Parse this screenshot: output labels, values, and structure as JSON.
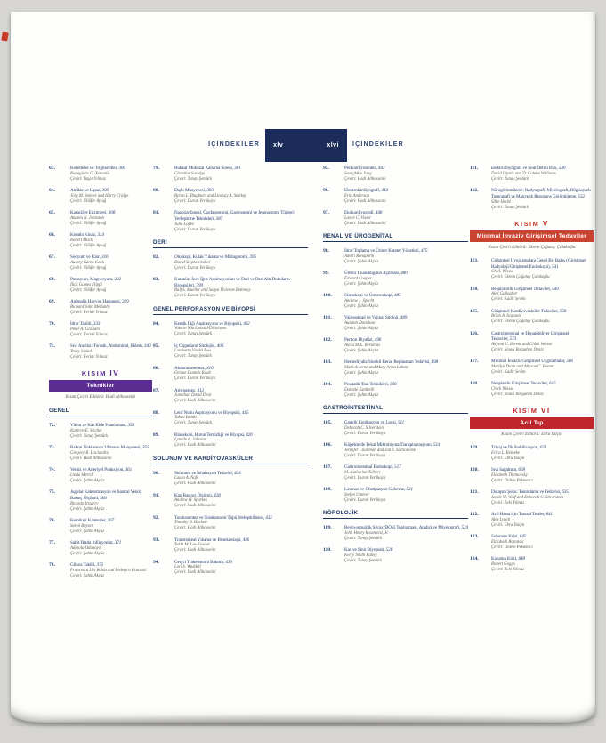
{
  "header": {
    "label_left": "İÇİNDEKİLER",
    "label_right": "İÇİNDEKİLER",
    "page_number_left": "xlv",
    "page_number_right": "xlvi"
  },
  "colors": {
    "navy_title": "#24416f",
    "navy_header_box": "#1c2c5a",
    "purple_part": "#5c2d91",
    "red_part_v": "#c84431",
    "red_part_vi": "#c0272d",
    "meta_gray": "#5f5e5c"
  },
  "columns": [
    [
      {
        "type": "entry",
        "number": "63.",
        "title": "Kolesterol ve Trigliseritler",
        "page": "300",
        "authors": "Panagiotis G. Xenoulis",
        "translator": "Çeviri: Yaşar Yılmaz"
      },
      {
        "type": "entry",
        "number": "64.",
        "title": "Amilaz ve Lipaz",
        "page": "306",
        "authors": "Jörg M. Steiner and Harry Cridge",
        "translator": "Çeviri: Nilüfer Aytuğ"
      },
      {
        "type": "entry",
        "number": "65.",
        "title": "Karaciğer Enzimleri",
        "page": "308",
        "authors": "Andrea N. Johnston",
        "translator": "Çeviri: Nilüfer Aytuğ"
      },
      {
        "type": "entry",
        "number": "66.",
        "title": "Kreatin Kinaz",
        "page": "314",
        "authors": "Robert Mack",
        "translator": "Çeviri: Nilüfer Aytuğ"
      },
      {
        "type": "entry",
        "number": "67.",
        "title": "Sodyum ve Klor",
        "page": "316",
        "authors": "Audrey Karen Cook",
        "translator": "Çeviri: Nilüfer Aytuğ"
      },
      {
        "type": "entry",
        "number": "68.",
        "title": "Potasyum, Magnezyum",
        "page": "322",
        "authors": "İlias Gomes Flippi",
        "translator": "Çeviri: Nilüfer Aytuğ"
      },
      {
        "type": "entry",
        "number": "69.",
        "title": "Animalia Hayvan Hastanesi",
        "page": "329",
        "authors": "Richard John Mellanby",
        "translator": "Çeviri: Feride Yılmaz"
      },
      {
        "type": "entry",
        "number": "70.",
        "title": "İdrar Tahlili",
        "page": "333",
        "authors": "Peter A. Graham",
        "translator": "Çeviri: Feride Yılmaz"
      },
      {
        "type": "entry",
        "number": "71.",
        "title": "Sıvı Analizi: Torasik, Abdominal, Eklem",
        "page": "340",
        "authors": "Tracy Stokol",
        "translator": "Çeviri: Feride Yılmaz"
      },
      {
        "type": "part",
        "kisim_label": "KISIM",
        "numeral": "IV",
        "title": "Teknikler",
        "editor": "Kısım Çeviri Editörü: Hadi Alihosseini",
        "text_color": "#5c2d91",
        "bar_color": "#5c2d91"
      },
      {
        "type": "section",
        "label": "GENEL"
      },
      {
        "type": "entry",
        "number": "72.",
        "title": "Vücut ve Kas Kitle Puanlaması",
        "page": "353",
        "authors": "Kathryn E. Michel",
        "translator": "Çeviri: Tunay Şentürk"
      },
      {
        "type": "entry",
        "number": "73.",
        "title": "Bakım Noktasında Ultrason Muayenesi",
        "page": "355",
        "authors": "Gregory R. Lisciandro",
        "translator": "Çeviri: Hadi Alihosseini"
      },
      {
        "type": "entry",
        "number": "74.",
        "title": "Venöz ve Arteriyel Ponksiyon",
        "page": "361",
        "authors": "Linda Merrill",
        "translator": "Çeviri: Şahin Akyüz"
      },
      {
        "type": "entry",
        "number": "75.",
        "title": "Jugular Kateterizasyon ve Santral Venöz Basınç Ölçümü",
        "page": "364",
        "authors": "Ricardo Irizarry",
        "translator": "Çeviri: Şahin Akyüz"
      },
      {
        "type": "entry",
        "number": "76.",
        "title": "Kemikiçi Kateterler",
        "page": "367",
        "authors": "Søren Boysen",
        "translator": "Çeviri: Şahin Akyüz"
      },
      {
        "type": "entry",
        "number": "77.",
        "title": "Sabit Hızda İnfüzyonlar",
        "page": "371",
        "authors": "Adesola Odunayo",
        "translator": "Çeviri: Şahin Akyüz"
      },
      {
        "type": "entry",
        "number": "78.",
        "title": "Glikoz Takibi",
        "page": "375",
        "authors": "Francesca Del Baldo and Federico Fracassi",
        "translator": "Çeviri: Şahin Akyüz"
      }
    ],
    [
      {
        "type": "entry",
        "number": "79.",
        "title": "Bukkal Mukozal Kanama Süresi",
        "page": "381",
        "authors": "Christine Savidge",
        "translator": "Çeviri: Tunay Şentürk"
      },
      {
        "type": "entry",
        "number": "80.",
        "title": "Dışkı Muayenesi",
        "page": "383",
        "authors": "Byron L. Blagburn and Lindsay A. Starkey",
        "translator": "Çeviri: Duran Yerlikaya"
      },
      {
        "type": "entry",
        "number": "81.",
        "title": "Nazoözofageal, Özofagostomi, Gastrostomi ve Jejunostomi Tüpleri: Yerleştirme Teknikleri",
        "page": "387",
        "authors": "Julie Lopez",
        "translator": "Çeviri: Duran Yerlikaya"
      },
      {
        "type": "section",
        "label": "DERİ"
      },
      {
        "type": "entry",
        "number": "82.",
        "title": "Otoskopi, Kulak Yıkama ve Miringotomi",
        "page": "395",
        "authors": "David Stephen Sobel",
        "translator": "Çeviri: Duran Yerlikaya"
      },
      {
        "type": "entry",
        "number": "83.",
        "title": "Kutanöz, İnce İğne Aspirasyonları ve Deri ve Deri Altı Dokuların Biyopsileri",
        "page": "399",
        "authors": "Ralf S. Mueller and Sonya Vivienne Bettenay",
        "translator": "Çeviri: Duran Yerlikaya"
      },
      {
        "type": "section",
        "label": "GENEL PERFORASYON VE BİYOPSİ"
      },
      {
        "type": "entry",
        "number": "84.",
        "title": "Kemik İliği Aspirasyonu ve Biyopsisi",
        "page": "402",
        "authors": "Valerie MacDonald-Dickinson",
        "translator": "Çeviri: Tunay Şentürk"
      },
      {
        "type": "entry",
        "number": "85.",
        "title": "İç Organların Sitolojisi",
        "page": "406",
        "authors": "Lamberto Viadel Bou",
        "translator": "Çeviri: Tunay Şentürk"
      },
      {
        "type": "entry",
        "number": "86.",
        "title": "Abdominosentez",
        "page": "410",
        "authors": "Oriane Daniels Raab",
        "translator": "Çeviri: Duran Yerlikaya"
      },
      {
        "type": "entry",
        "number": "87.",
        "title": "Artrosentez",
        "page": "412",
        "authors": "Jonathan David Dear",
        "translator": "Çeviri: Hadi Alihosseini"
      },
      {
        "type": "entry",
        "number": "88.",
        "title": "Lenf Nodu Aspirasyonu ve Biyopsisi",
        "page": "415",
        "authors": "Takuo Ishida",
        "translator": "Çeviri: Tunay Şentürk"
      },
      {
        "type": "entry",
        "number": "89.",
        "title": "Rinoskopi, Burun Temizliği ve Biyopsi",
        "page": "420",
        "authors": "Lynelle R. Johnson",
        "translator": "Çeviri: Hadi Alihosseini"
      },
      {
        "type": "section",
        "label": "SOLUNUM VE KARDİYOVASKÜLER"
      },
      {
        "type": "entry",
        "number": "90.",
        "title": "Solunum ve İnhalasyon Tedavisi",
        "page": "424",
        "authors": "Laura A. Nafe",
        "translator": "Çeviri: Hadi Alihosseini"
      },
      {
        "type": "entry",
        "number": "91.",
        "title": "Kan Basıncı Ölçümü",
        "page": "428",
        "authors": "Andrew H. Sparkes",
        "translator": "Çeviri: Hadi Alihosseini"
      },
      {
        "type": "entry",
        "number": "92.",
        "title": "Torakosentez ve Torakostomi Tüpü Yerleştirilmesi",
        "page": "432",
        "authors": "Timothy B. Hackett",
        "translator": "Çeviri: Hadi Alihosseini"
      },
      {
        "type": "entry",
        "number": "93.",
        "title": "Transtrakeal Yıkama ve Bronkoskopi",
        "page": "436",
        "authors": "Tekla M. Lee-Fowler",
        "translator": "Çeviri: Hadi Alihosseini"
      },
      {
        "type": "entry",
        "number": "94.",
        "title": "Geçici Trakeostomi Bakımı",
        "page": "439",
        "authors": "Lori S. Waddell",
        "translator": "Çeviri: Hadi Alihosseini"
      }
    ],
    [
      {
        "type": "entry",
        "number": "95.",
        "title": "Perikardiyosentez",
        "page": "442",
        "authors": "SeungWoo Jung",
        "translator": "Çeviri: Hadi Alihosseini"
      },
      {
        "type": "entry",
        "number": "96.",
        "title": "Elektrokardiyografi",
        "page": "444",
        "authors": "Erin Anderson",
        "translator": "Çeviri: Hadi Alihosseini"
      },
      {
        "type": "entry",
        "number": "97.",
        "title": "Ekokardiyografi",
        "page": "448",
        "authors": "Lance C. Visser",
        "translator": "Çeviri: Hadi Alihosseini"
      },
      {
        "type": "section",
        "label": "RENAL VE ÜROGENİTAL"
      },
      {
        "type": "entry",
        "number": "98.",
        "title": "İdrar Toplama ve Üriner Kateter Yönetimi",
        "page": "475",
        "authors": "Adetri Bonaparte",
        "translator": "Çeviri: Şahin Akyüz"
      },
      {
        "type": "entry",
        "number": "99.",
        "title": "Üretra Tıkanıklığının Açılması",
        "page": "480",
        "authors": "Edward Cooper",
        "translator": "Çeviri: Şahin Akyüz"
      },
      {
        "type": "entry",
        "number": "100.",
        "title": "Sistoskopi ve Üreteroskopi",
        "page": "485",
        "authors": "Andrew J. Specht",
        "translator": "Çeviri: Şahin Akyüz"
      },
      {
        "type": "entry",
        "number": "101.",
        "title": "Vajinoskopi ve Vajinal Sitoloji",
        "page": "489",
        "authors": "Autumn Davidson",
        "translator": "Çeviri: Şahin Akyüz"
      },
      {
        "type": "entry",
        "number": "102.",
        "title": "Periton Diyalizi",
        "page": "496",
        "authors": "Alexa M.E. Bersenas",
        "translator": "Çeviri: Şahin Akyüz"
      },
      {
        "type": "entry",
        "number": "103.",
        "title": "Hemodiyaliz/Sürekli Renal Replasman Tedavisi",
        "page": "498",
        "authors": "Mark Acierno and Mary Anna Labato",
        "translator": "Çeviri: Şahin Akyüz"
      },
      {
        "type": "entry",
        "number": "104.",
        "title": "Prostatik Tanı Teknikleri",
        "page": "506",
        "authors": "Daniele Zambelli",
        "translator": "Çeviri: Şahin Akyüz"
      },
      {
        "type": "section",
        "label": "GASTROİNTESTİNAL"
      },
      {
        "type": "entry",
        "number": "105.",
        "title": "Gastrik Entübasyon ve Lavaj",
        "page": "511",
        "authors": "Deborah C. Silverstein",
        "translator": "Çeviri: Duran Yerlikaya"
      },
      {
        "type": "entry",
        "number": "106.",
        "title": "Köpeklerde Fekal Mikrobiyota Transplantasyonu",
        "page": "514",
        "authors": "Jennifer Chaitman and Jan S. Suchodolski",
        "translator": "Çeviri: Duran Yerlikaya"
      },
      {
        "type": "entry",
        "number": "107.",
        "title": "Gastrointestinal Endoskopi",
        "page": "517",
        "authors": "M. Katherine Tolbert",
        "translator": "Çeviri: Duran Yerlikaya"
      },
      {
        "type": "entry",
        "number": "108.",
        "title": "Lavman ve Obstipasyon Giderme",
        "page": "521",
        "authors": "Stefan Unterer",
        "translator": "Çeviri: Duran Yerlikaya"
      },
      {
        "type": "section",
        "label": "NÖROLOJİK"
      },
      {
        "type": "entry",
        "number": "109.",
        "title": "Beyin-omurilik Sıvısı (BOS) Toplanması, Analizi ve Miyelografi",
        "page": "524",
        "authors": "John Henry Rossmeisl, Jr.",
        "translator": "Çeviri: Tunay Şentürk"
      },
      {
        "type": "entry",
        "number": "110.",
        "title": "Kas ve Sinir Biyopsisi",
        "page": "528",
        "authors": "Kerry Smith Bailey",
        "translator": "Çeviri: Tunay Şentürk"
      }
    ],
    [
      {
        "type": "entry",
        "number": "111.",
        "title": "Elektromiyografi ve Sinir İletim Hızı",
        "page": "530",
        "authors": "David Lipsitz and D. Colette Williams",
        "translator": "Çeviri: Tunay Şentürk"
      },
      {
        "type": "entry",
        "number": "112.",
        "title": "Nörogörüntüleme: Radyografi, Miyelografi, Bilgisayarlı Tomografi ve Manyetik Rezonans Görüntüleme",
        "page": "532",
        "authors": "Silke Hecht",
        "translator": "Çeviri: Tunay Şentürk"
      },
      {
        "type": "part",
        "kisim_label": "KISIM",
        "numeral": "V",
        "title": "Minimal İnvaziv Girişimsel Tedaviler",
        "editor": "Kısım Çeviri Editörü: Ekrem Çağatay Çolakoğlu",
        "text_color": "#c5392c",
        "bar_color": "#c84431"
      },
      {
        "type": "entry",
        "number": "113.",
        "title": "Girişimsel Uygulamalara Genel Bir Bakış (Girişimsel Radyoloji/Girişimsel Endoskopi)",
        "page": "541",
        "authors": "Chick Weisse",
        "translator": "Çeviri: Ekrem Çağatay Çolakoğlu"
      },
      {
        "type": "entry",
        "number": "114.",
        "title": "Respiratorik Girişimsel Tedaviler",
        "page": "549",
        "authors": "Alex Gallagher",
        "translator": "Çeviri: Kadir Sevim"
      },
      {
        "type": "entry",
        "number": "115.",
        "title": "Girişimsel Kardiyovasküler Tedaviler",
        "page": "558",
        "authors": "Brian A. Scansen",
        "translator": "Çeviri: Ekrem Çağatay Çolakoğlu"
      },
      {
        "type": "entry",
        "number": "116.",
        "title": "Gastrointestinal ve Hepatobiliyer Girişimsel Tedaviler",
        "page": "573",
        "authors": "Allyson C. Berent and Chick Weisse",
        "translator": "Çeviri: Şinasi Borgahen Deniz"
      },
      {
        "type": "entry",
        "number": "117.",
        "title": "Minimal İnvaziv Girişimsel Uygulamalar",
        "page": "586",
        "authors": "Marilyn Dunn and Allyson C. Berent",
        "translator": "Çeviri: Kadir Sevim"
      },
      {
        "type": "entry",
        "number": "118.",
        "title": "Neoplastik Girişimsel Tedaviler",
        "page": "615",
        "authors": "Chick Weisse",
        "translator": "Çeviri: Şinasi Borgahen Deniz"
      },
      {
        "type": "part",
        "kisim_label": "KISIM",
        "numeral": "VI",
        "title": "Acil Tıp",
        "editor": "Kısım Çeviri Editörü: Ebru Yalçın",
        "text_color": "#c0272d",
        "bar_color": "#c0272d"
      },
      {
        "type": "entry",
        "number": "119.",
        "title": "Triyaj ve İlk Stabilizasyon",
        "page": "623",
        "authors": "Erica L. Reineke",
        "translator": "Çeviri: Ebru Yalçın"
      },
      {
        "type": "entry",
        "number": "120.",
        "title": "Sıvı Sağaltımı",
        "page": "628",
        "authors": "Elizabeth Thomovsky",
        "translator": "Çeviri: Didem Pekmezci"
      },
      {
        "type": "entry",
        "number": "121.",
        "title": "Dolaşım Şoku: Tanımlama ve Tedavisi",
        "page": "635",
        "authors": "Jacob M. Wolf and Deborah C. Silverstein",
        "translator": "Çeviri: Zeki Yılmaz"
      },
      {
        "type": "entry",
        "number": "122.",
        "title": "Acil Hasta için Tanısal Testler",
        "page": "641",
        "authors": "Alex Lynch",
        "translator": "Çeviri: Ebru Yalçın"
      },
      {
        "type": "entry",
        "number": "123.",
        "title": "Solunum Krizi",
        "page": "645",
        "authors": "Elizabeth Rozanski",
        "translator": "Çeviri: Didem Pekmezci"
      },
      {
        "type": "entry",
        "number": "124.",
        "title": "Kanama Krizi",
        "page": "648",
        "authors": "Robert Goggs",
        "translator": "Çeviri: Zeki Yılmaz"
      }
    ]
  ]
}
